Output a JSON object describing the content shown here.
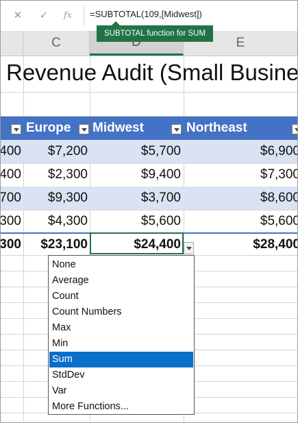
{
  "formula_bar": {
    "cancel_icon": "x-icon",
    "enter_icon": "check-icon",
    "function_icon": "fx",
    "formula": "=SUBTOTAL(109,[Midwest])",
    "tooltip": "SUBTOTAL function for SUM"
  },
  "columns": [
    {
      "label": "C"
    },
    {
      "label": "D"
    },
    {
      "label": "E"
    }
  ],
  "title": "Revenue Audit (Small Business",
  "table": {
    "headers": [
      "",
      "Europe",
      "Midwest",
      "Northeast"
    ],
    "rows": [
      [
        "400",
        "$7,200",
        "$5,700",
        "$6,900"
      ],
      [
        "400",
        "$2,300",
        "$9,400",
        "$7,300"
      ],
      [
        "700",
        "$9,300",
        "$3,700",
        "$8,600"
      ],
      [
        "300",
        "$4,300",
        "$5,600",
        "$5,600"
      ]
    ],
    "totals": [
      "300",
      "$23,100",
      "$24,400",
      "$28,400"
    ]
  },
  "menu": {
    "items": [
      "None",
      "Average",
      "Count",
      "Count Numbers",
      "Max",
      "Min",
      "Sum",
      "StdDev",
      "Var",
      "More Functions..."
    ],
    "selected": "Sum"
  },
  "colors": {
    "header_blue": "#4472c4",
    "band_blue": "#dae3f3",
    "excel_green": "#217346",
    "selection_blue": "#0a6fc9"
  }
}
